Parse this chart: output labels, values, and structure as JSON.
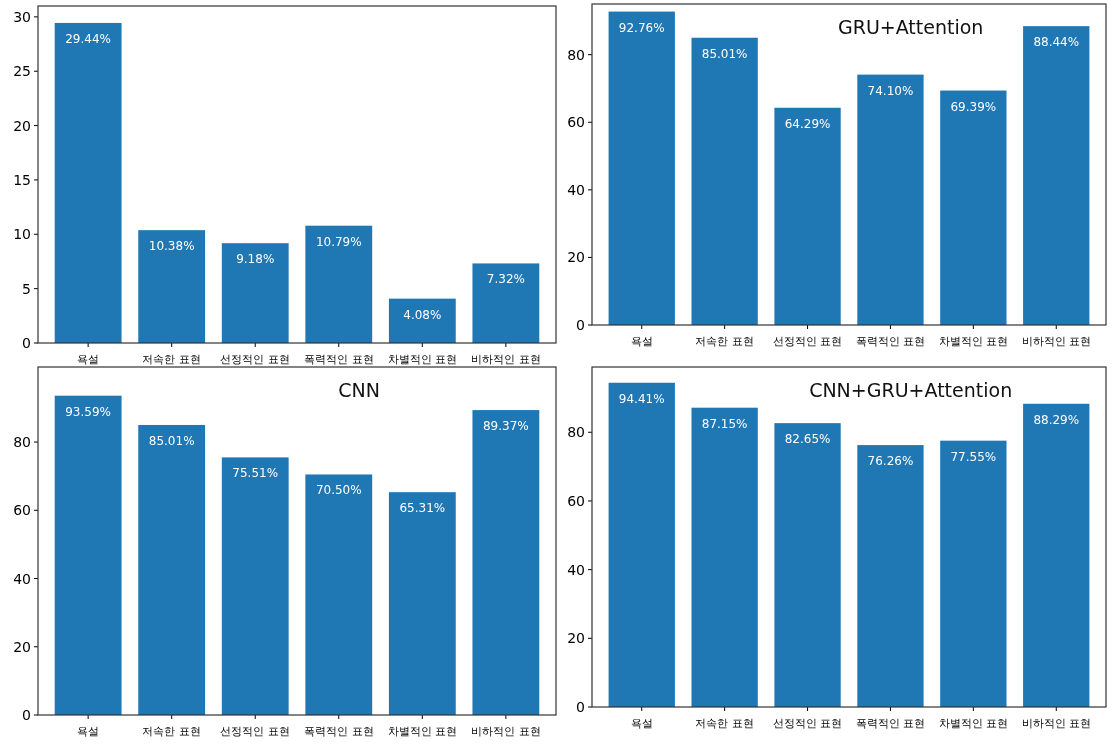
{
  "chart_data": [
    {
      "type": "bar",
      "categories": [
        "욕설",
        "저속한 표현",
        "선정적인 표현",
        "폭력적인 표현",
        "차별적인 표현",
        "비하적인 표현"
      ],
      "values": [
        29.44,
        10.38,
        9.18,
        10.79,
        4.08,
        7.32
      ],
      "value_labels": [
        "29.44%",
        "10.38%",
        "9.18%",
        "10.79%",
        "4.08%",
        "7.32%"
      ],
      "color": "#1f77b4",
      "ylim": [
        0,
        31
      ],
      "yticks": [
        0,
        5,
        10,
        15,
        20,
        25,
        30
      ],
      "grid": false
    },
    {
      "type": "bar",
      "title": "GRU+Attention",
      "categories": [
        "욕설",
        "저속한 표현",
        "선정적인 표현",
        "폭력적인 표현",
        "차별적인 표현",
        "비하적인 표현"
      ],
      "values": [
        92.76,
        85.01,
        64.29,
        74.1,
        69.39,
        88.44
      ],
      "value_labels": [
        "92.76%",
        "85.01%",
        "64.29%",
        "74.10%",
        "69.39%",
        "88.44%"
      ],
      "color": "#1f77b4",
      "ylim": [
        0,
        95
      ],
      "yticks": [
        0,
        20,
        40,
        60,
        80
      ],
      "grid": false
    },
    {
      "type": "bar",
      "title": "CNN",
      "categories": [
        "욕설",
        "저속한 표현",
        "선정적인 표현",
        "폭력적인 표현",
        "차별적인 표현",
        "비하적인 표현"
      ],
      "values": [
        93.59,
        85.01,
        75.51,
        70.5,
        65.31,
        89.37
      ],
      "value_labels": [
        "93.59%",
        "85.01%",
        "75.51%",
        "70.50%",
        "65.31%",
        "89.37%"
      ],
      "color": "#1f77b4",
      "ylim": [
        0,
        102
      ],
      "yticks": [
        0,
        20,
        40,
        60,
        80
      ],
      "grid": false
    },
    {
      "type": "bar",
      "title": "CNN+GRU+Attention",
      "categories": [
        "욕설",
        "저속한 표현",
        "선정적인 표현",
        "폭력적인 표현",
        "차별적인 표현",
        "비하적인 표현"
      ],
      "values": [
        94.41,
        87.15,
        82.65,
        76.26,
        77.55,
        88.29
      ],
      "value_labels": [
        "94.41%",
        "87.15%",
        "82.65%",
        "76.26%",
        "77.55%",
        "88.29%"
      ],
      "color": "#1f77b4",
      "ylim": [
        0,
        99
      ],
      "yticks": [
        0,
        20,
        40,
        60,
        80
      ],
      "grid": false
    }
  ]
}
